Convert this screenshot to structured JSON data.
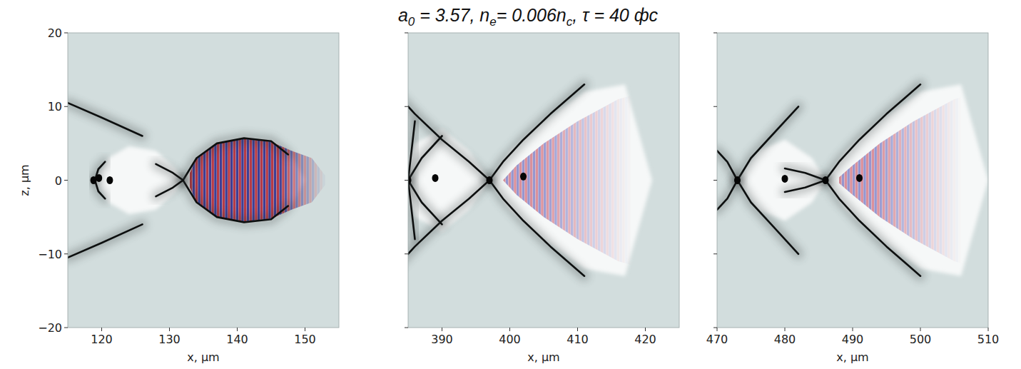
{
  "chart_data": {
    "type": "field_map",
    "title": [
      {
        "text": "a"
      },
      {
        "text": "0",
        "sub": true
      },
      {
        "text": " = 3.57, n"
      },
      {
        "text": "e",
        "sub": true
      },
      {
        "text": "= 0.006n"
      },
      {
        "text": "c",
        "sub": true
      },
      {
        "text": ", τ = 40 фс"
      }
    ],
    "panels": [
      {
        "x_label": "x, μm",
        "y_label": "z, μm",
        "xlim": [
          115,
          155
        ],
        "xticks": [
          120,
          130,
          140,
          150
        ],
        "ylim": [
          -20,
          20
        ],
        "yticks": [
          {
            "value": -20,
            "label": "−20"
          },
          {
            "value": -10,
            "label": "−10"
          },
          0,
          10,
          20
        ],
        "tick_labels": true,
        "cavities": [
          [
            [
              119,
              0
            ],
            [
              121,
              3
            ],
            [
              124,
              4.6
            ],
            [
              128,
              4
            ],
            [
              131,
              1.5
            ],
            [
              132,
              0
            ]
          ],
          [
            [
              132,
              0
            ],
            [
              134,
              3
            ],
            [
              137,
              5
            ],
            [
              141,
              5.7
            ],
            [
              145,
              5.3
            ],
            [
              148,
              3.5
            ],
            [
              150,
              0
            ]
          ]
        ],
        "laser": {
          "outline": [
            [
              132.5,
              0
            ],
            [
              134,
              3
            ],
            [
              137,
              5
            ],
            [
              141,
              5.6
            ],
            [
              145,
              5.2
            ],
            [
              148,
              4
            ],
            [
              151,
              3
            ],
            [
              153.5,
              0
            ]
          ],
          "x_range": [
            133,
            153
          ],
          "x_peak": 146,
          "wavelength": 0.8,
          "colors": [
            "#b3303c",
            "#34348f"
          ]
        },
        "sheaths": [
          [
            [
              132,
              0
            ],
            [
              134,
              3
            ],
            [
              137,
              5
            ],
            [
              141,
              5.7
            ],
            [
              145,
              5.3
            ],
            [
              147.5,
              3.5
            ]
          ],
          [
            [
              128,
              2.2
            ],
            [
              130.5,
              1
            ],
            [
              132,
              0
            ]
          ],
          [
            [
              119,
              0
            ],
            [
              119.5,
              1.5
            ],
            [
              120.5,
              2.5
            ]
          ],
          [
            [
              115,
              10.5
            ],
            [
              120,
              8.5
            ],
            [
              126,
              6
            ]
          ]
        ],
        "bunches": [
          [
            118.8,
            0
          ],
          [
            119.6,
            0.3
          ],
          [
            121.2,
            0
          ]
        ]
      },
      {
        "x_label": "x, μm",
        "xlim": [
          385,
          425
        ],
        "xticks": [
          390,
          400,
          410,
          420
        ],
        "ylim": [
          -20,
          20
        ],
        "yticks": [
          -20,
          -10,
          0,
          10,
          20
        ],
        "tick_labels": "x",
        "cavities": [
          [
            [
              384,
              0
            ],
            [
              386,
              5
            ],
            [
              390,
              7
            ],
            [
              394,
              4
            ],
            [
              397,
              0
            ]
          ],
          [
            [
              397,
              0
            ],
            [
              400,
              4
            ],
            [
              405,
              8
            ],
            [
              411,
              12
            ],
            [
              417,
              13
            ],
            [
              421,
              0
            ]
          ]
        ],
        "laser": {
          "outline": [
            [
              399,
              0
            ],
            [
              401,
              2
            ],
            [
              405,
              5
            ],
            [
              410,
              8
            ],
            [
              416,
              11
            ],
            [
              420,
              12
            ],
            [
              421,
              0
            ]
          ],
          "x_range": [
            399,
            418
          ],
          "x_peak": 404,
          "wavelength": 0.8,
          "colors": [
            "#d88a96",
            "#9090cc"
          ]
        },
        "sheaths": [
          [
            [
              397,
              0
            ],
            [
              399,
              2.5
            ],
            [
              402,
              5.5
            ],
            [
              406,
              9
            ],
            [
              411,
              13
            ]
          ],
          [
            [
              397,
              0
            ],
            [
              394,
              2.5
            ],
            [
              390,
              5.5
            ],
            [
              386,
              9
            ],
            [
              383,
              12
            ]
          ],
          [
            [
              385,
              0
            ],
            [
              387,
              3
            ],
            [
              390,
              6
            ]
          ],
          [
            [
              385,
              0
            ],
            [
              385.5,
              4
            ],
            [
              386,
              8
            ]
          ]
        ],
        "bunches": [
          [
            389,
            0.3
          ],
          [
            397,
            0
          ],
          [
            402,
            0.5
          ],
          [
            385,
            0
          ]
        ]
      },
      {
        "x_label": "x, μm",
        "xlim": [
          470,
          510
        ],
        "xticks": [
          470,
          480,
          490,
          500,
          510
        ],
        "ylim": [
          -20,
          20
        ],
        "yticks": [
          -20,
          -10,
          0,
          10,
          20
        ],
        "tick_labels": "x",
        "cavities": [
          [
            [
              473,
              0
            ],
            [
              476,
              4
            ],
            [
              480,
              5.5
            ],
            [
              484,
              3
            ],
            [
              486,
              0
            ]
          ],
          [
            [
              486,
              0
            ],
            [
              489,
              4
            ],
            [
              494,
              8
            ],
            [
              500,
              12
            ],
            [
              506,
              13
            ],
            [
              510,
              0
            ]
          ]
        ],
        "laser": {
          "outline": [
            [
              487.5,
              0
            ],
            [
              490,
              2
            ],
            [
              494,
              5
            ],
            [
              499,
              8
            ],
            [
              505,
              11
            ],
            [
              509,
              12
            ],
            [
              510,
              0
            ]
          ],
          "x_range": [
            488,
            506
          ],
          "x_peak": 493,
          "wavelength": 0.8,
          "colors": [
            "#d88a96",
            "#9090cc"
          ]
        },
        "sheaths": [
          [
            [
              486,
              0
            ],
            [
              488,
              2.5
            ],
            [
              491,
              5.5
            ],
            [
              495,
              9
            ],
            [
              500,
              13
            ]
          ],
          [
            [
              486,
              0
            ],
            [
              483,
              1
            ],
            [
              480,
              1.6
            ]
          ],
          [
            [
              473,
              0
            ],
            [
              475,
              3
            ],
            [
              478,
              6
            ],
            [
              482,
              10
            ]
          ],
          [
            [
              473,
              0
            ],
            [
              471.5,
              2.5
            ],
            [
              470,
              4
            ]
          ]
        ],
        "bunches": [
          [
            480,
            0.2
          ],
          [
            486,
            0
          ],
          [
            491,
            0.3
          ],
          [
            473,
            0
          ]
        ]
      }
    ]
  }
}
